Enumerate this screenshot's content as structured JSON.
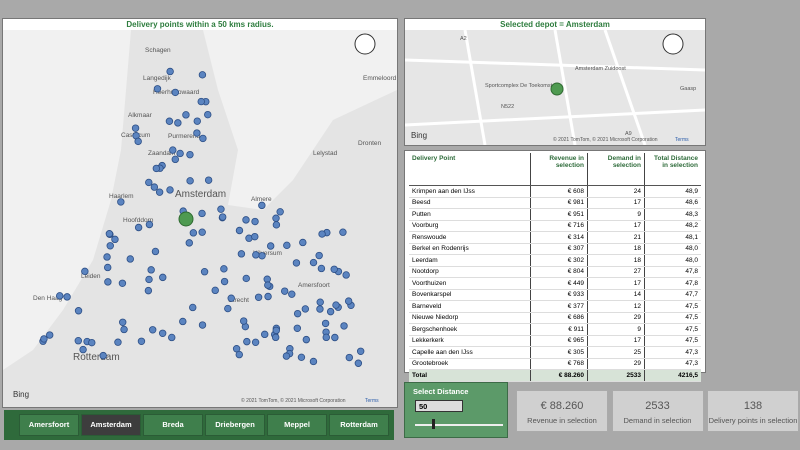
{
  "map_panel": {
    "title": "Delivery points within a 50 kms radius.",
    "labels": [
      "Schagen",
      "Langedijk",
      "Heerhugowaard",
      "Alkmaar",
      "Castricum",
      "Purmerend",
      "Zaandam",
      "Haarlem",
      "Amsterdam",
      "Hoofddorp",
      "Almere",
      "Leiden",
      "Den Haag",
      "Hilversum",
      "Amersfoort",
      "Utrecht",
      "Rotterdam",
      "Emmeloord",
      "Lelystad",
      "Dronten"
    ],
    "logo": "Bing",
    "attribution": "© 2021 TomTom, © 2021 Microsoft Corporation",
    "terms": "Terms"
  },
  "depot_panel": {
    "title": "Selected depot = Amsterdam",
    "labels": [
      "Sportcomplex De Toekomst",
      "Amsterdam Zuidoost",
      "A2",
      "A9",
      "N522",
      "Gaasp"
    ],
    "logo": "Bing",
    "attribution": "© 2021 TomTom, © 2021 Microsoft Corporation",
    "terms": "Terms"
  },
  "table": {
    "columns": [
      "Delivery Point",
      "Revenue in selection",
      "Demand in selection",
      "Total Distance in selection"
    ],
    "rows": [
      [
        "Krimpen aan den IJss",
        "€ 608",
        "24",
        "48,9"
      ],
      [
        "Beesd",
        "€ 981",
        "17",
        "48,6"
      ],
      [
        "Putten",
        "€ 951",
        "9",
        "48,3"
      ],
      [
        "Voorburg",
        "€ 716",
        "17",
        "48,2"
      ],
      [
        "Renswoude",
        "€ 314",
        "21",
        "48,1"
      ],
      [
        "Berkel en Rodenrijs",
        "€ 307",
        "18",
        "48,0"
      ],
      [
        "Leerdam",
        "€ 302",
        "18",
        "48,0"
      ],
      [
        "Nootdorp",
        "€ 804",
        "27",
        "47,8"
      ],
      [
        "Voorthuizen",
        "€ 449",
        "17",
        "47,8"
      ],
      [
        "Bovenkarspel",
        "€ 933",
        "14",
        "47,7"
      ],
      [
        "Barneveld",
        "€ 377",
        "12",
        "47,5"
      ],
      [
        "Nieuwe Niedorp",
        "€ 686",
        "29",
        "47,5"
      ],
      [
        "Bergschenhoek",
        "€ 911",
        "9",
        "47,5"
      ],
      [
        "Lekkerkerk",
        "€ 965",
        "17",
        "47,5"
      ],
      [
        "Capelle aan den IJss",
        "€ 305",
        "25",
        "47,3"
      ],
      [
        "Grootebroek",
        "€ 768",
        "29",
        "47,3"
      ]
    ],
    "total": [
      "Total",
      "€ 88.260",
      "2533",
      "4216,5"
    ]
  },
  "distance": {
    "label": "Select Distance",
    "value": "50"
  },
  "cards": [
    {
      "value": "€ 88.260",
      "label": "Revenue in selection"
    },
    {
      "value": "2533",
      "label": "Demand in selection"
    },
    {
      "value": "138",
      "label": "Delivery points in selection"
    }
  ],
  "buttons": [
    "Amersfoort",
    "Amsterdam",
    "Breda",
    "Driebergen",
    "Meppel",
    "Rotterdam"
  ],
  "selected_button": 1
}
